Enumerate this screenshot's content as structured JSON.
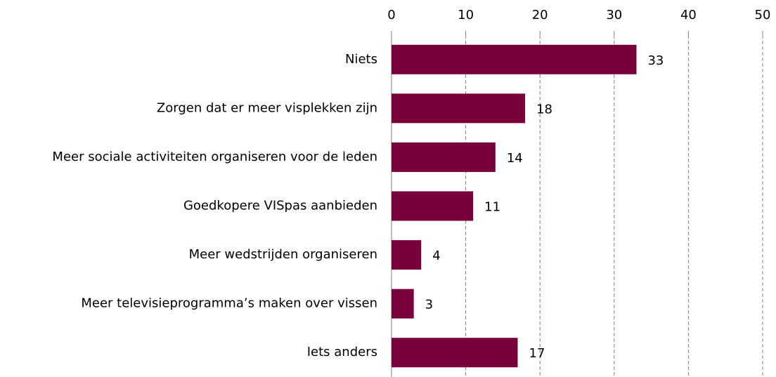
{
  "chart_data": {
    "type": "bar",
    "orientation": "horizontal",
    "categories": [
      "Niets",
      "Zorgen dat er meer visplekken zijn",
      "Meer sociale activiteiten organiseren voor de leden",
      "Goedkopere VISpas aanbieden",
      "Meer wedstrijden organiseren",
      "Meer televisieprogramma’s maken over vissen",
      "Iets anders"
    ],
    "values": [
      33,
      18,
      14,
      11,
      4,
      3,
      17
    ],
    "color": "#7a003c",
    "xlim": [
      0,
      50
    ],
    "xticks": [
      0,
      10,
      20,
      30,
      40,
      50
    ],
    "grid": true
  }
}
